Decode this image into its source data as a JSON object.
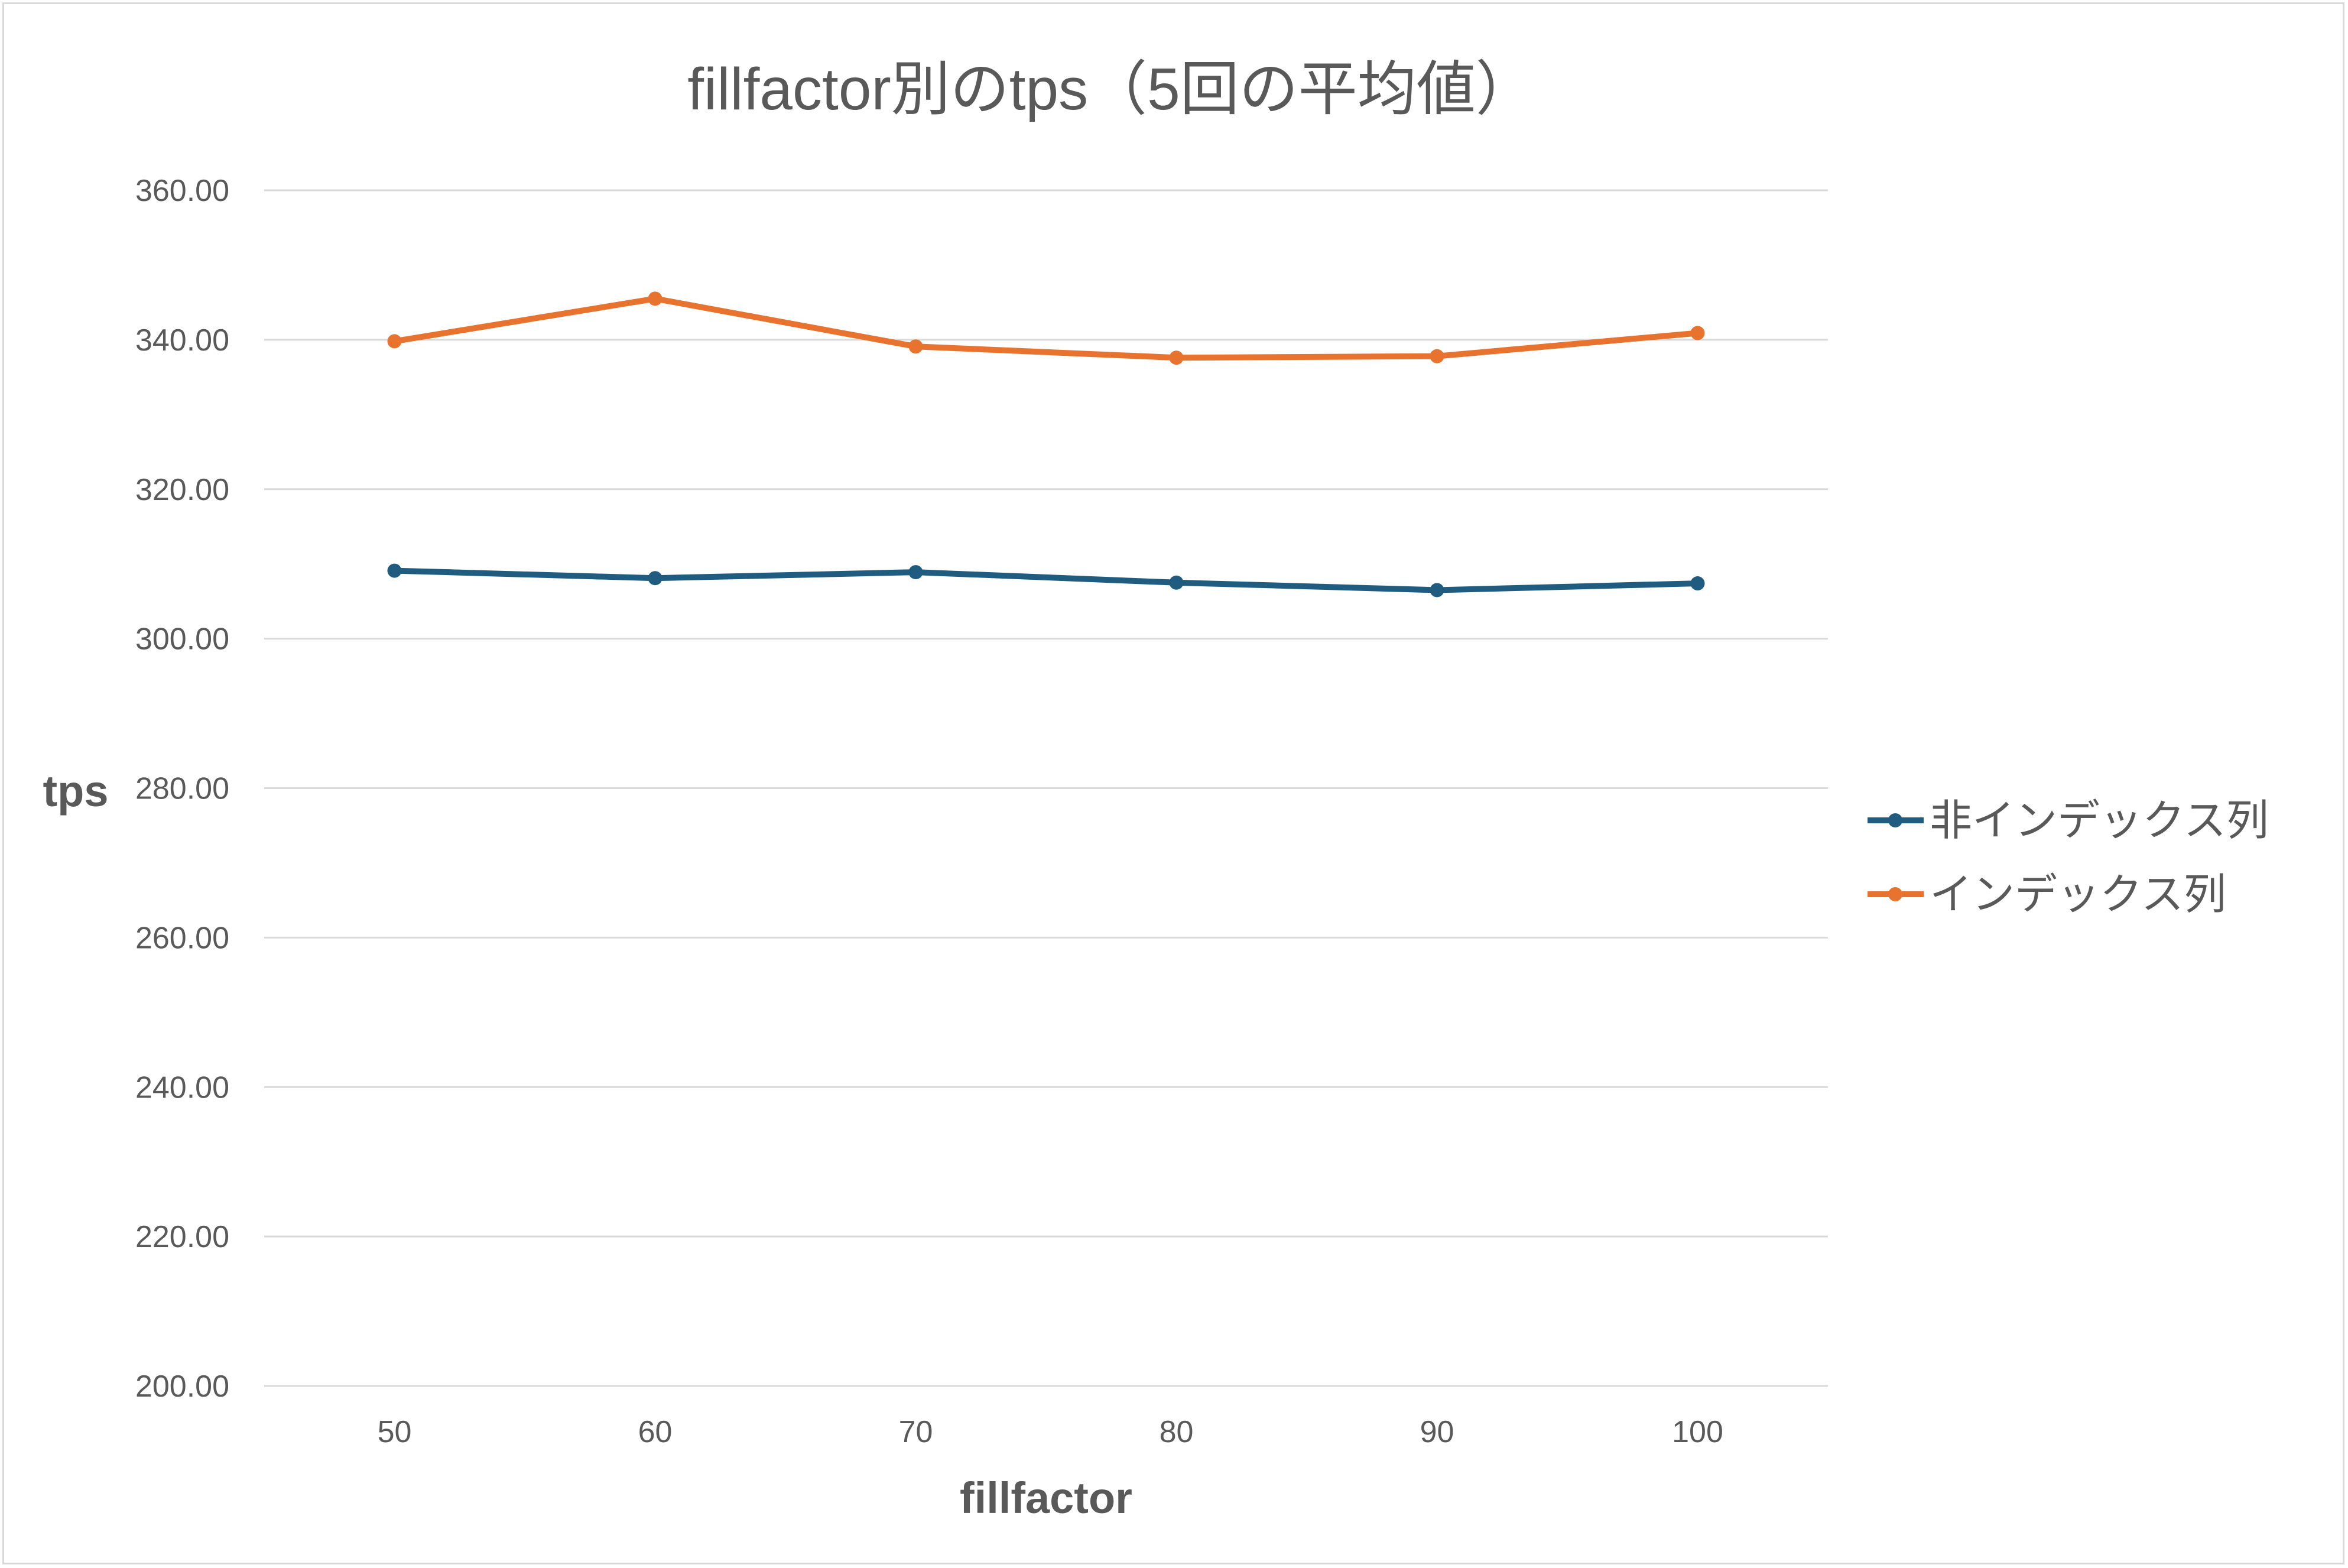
{
  "chart_data": {
    "type": "line",
    "title": "fillfactor別のtps（5回の平均値）",
    "xlabel": "fillfactor",
    "ylabel": "tps",
    "categories": [
      "50",
      "60",
      "70",
      "80",
      "90",
      "100"
    ],
    "ylim": [
      200,
      360
    ],
    "ytick_step": 20,
    "ytick_labels": [
      "200.00",
      "220.00",
      "240.00",
      "260.00",
      "280.00",
      "300.00",
      "320.00",
      "340.00",
      "360.00"
    ],
    "grid": true,
    "legend_position": "right",
    "series": [
      {
        "name": "非インデックス列",
        "color": "#1f5c7f",
        "values": [
          309.1,
          308.1,
          308.9,
          307.5,
          306.5,
          307.4
        ]
      },
      {
        "name": "インデックス列",
        "color": "#e8732e",
        "values": [
          339.8,
          345.5,
          339.1,
          337.6,
          337.8,
          340.9
        ]
      }
    ]
  }
}
